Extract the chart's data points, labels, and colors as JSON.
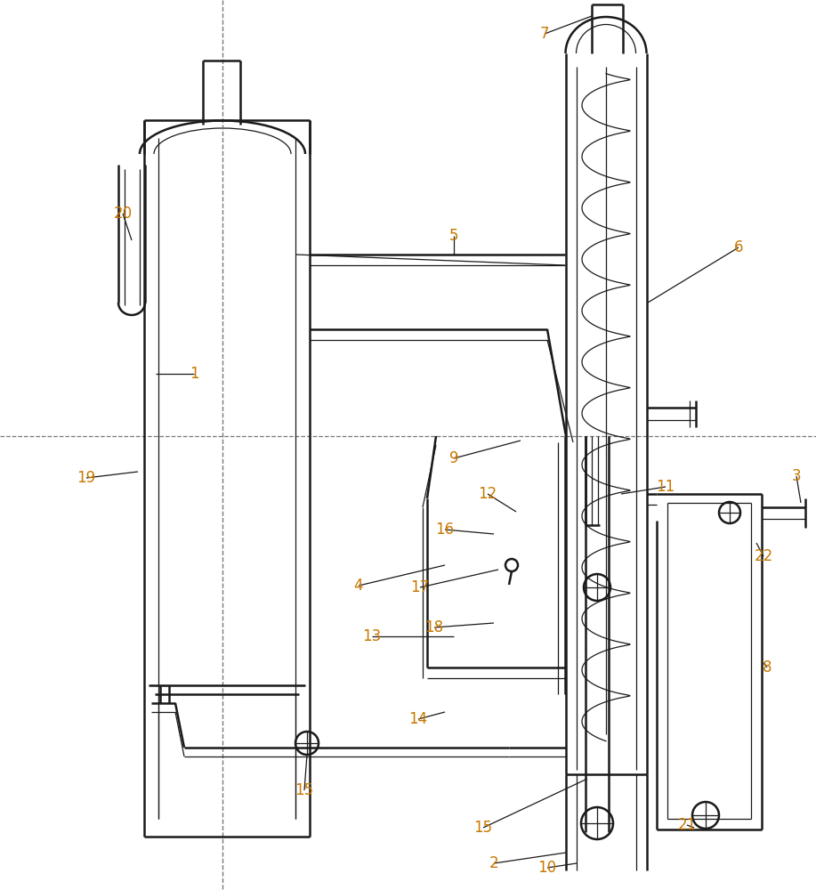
{
  "bg_color": "#ffffff",
  "line_color": "#1a1a1a",
  "label_color": "#c87800",
  "lw": 1.8,
  "tlw": 0.9
}
